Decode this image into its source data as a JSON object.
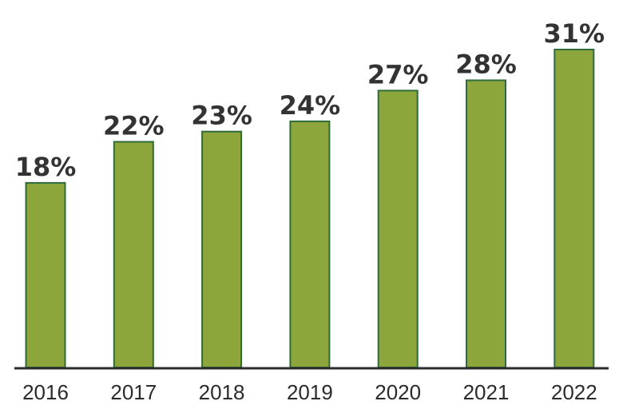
{
  "chart_data": {
    "type": "bar",
    "categories": [
      "2016",
      "2017",
      "2018",
      "2019",
      "2020",
      "2021",
      "2022"
    ],
    "values": [
      18,
      22,
      23,
      24,
      27,
      28,
      31
    ],
    "value_labels": [
      "18%",
      "22%",
      "23%",
      "24%",
      "27%",
      "28%",
      "31%"
    ],
    "title": "",
    "xlabel": "",
    "ylabel": "",
    "ylim": [
      0,
      31
    ],
    "grid": false,
    "legend": "none",
    "colors": {
      "bar_fill": "#8ca63c",
      "bar_stroke": "#2f6b3a",
      "text": "#333333"
    }
  }
}
